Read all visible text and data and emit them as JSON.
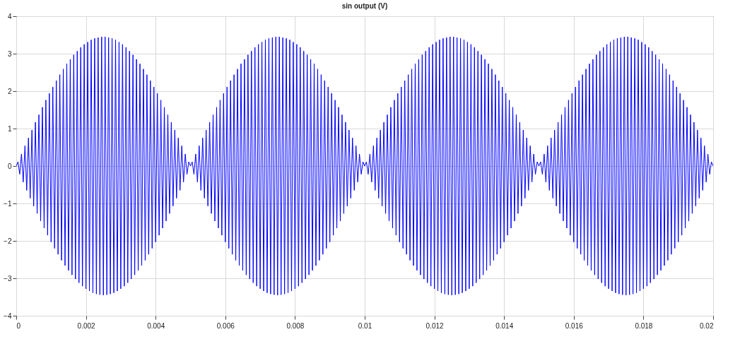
{
  "chart_data": {
    "type": "line",
    "title": "sin output (V)",
    "x": [
      0,
      5e-05,
      0.0001,
      0.00015,
      0.0002,
      0.00025,
      0.0003,
      0.00035,
      0.0004,
      0.00045,
      0.0005,
      0.00055,
      0.0006,
      0.00065,
      0.0007,
      0.00075,
      0.0008,
      0.00085,
      0.0009,
      0.00095,
      0.001,
      0.00105,
      0.0011,
      0.00115,
      0.0012,
      0.00125,
      0.0013,
      0.00135,
      0.0014,
      0.00145,
      0.0015,
      0.00155,
      0.0016,
      0.00165,
      0.0017,
      0.00175,
      0.0018,
      0.00185,
      0.0019,
      0.00195,
      0.002,
      0.00205,
      0.0021,
      0.00215,
      0.0022,
      0.00225,
      0.0023,
      0.00235,
      0.0024,
      0.00245,
      0.0025,
      0.00255,
      0.0026,
      0.00265,
      0.0027,
      0.00275,
      0.0028,
      0.00285,
      0.0029,
      0.00295,
      0.003,
      0.00305,
      0.0031,
      0.00315,
      0.0032,
      0.00325,
      0.0033,
      0.00335,
      0.0034,
      0.00345,
      0.0035,
      0.00355,
      0.0036,
      0.00365,
      0.0037,
      0.00375,
      0.0038,
      0.00385,
      0.0039,
      0.00395,
      0.004,
      0.00405,
      0.0041,
      0.00415,
      0.0042,
      0.00425,
      0.0043,
      0.00435,
      0.0044,
      0.00445,
      0.0045,
      0.00455,
      0.0046,
      0.00465,
      0.0047,
      0.00475,
      0.0048,
      0.00485,
      0.0049,
      0.00495,
      0.005,
      0.00505,
      0.0051,
      0.00515,
      0.0052,
      0.00525,
      0.0053,
      0.00535,
      0.0054,
      0.00545,
      0.0055,
      0.00555,
      0.0056,
      0.00565,
      0.0057,
      0.00575,
      0.0058,
      0.00585,
      0.0059,
      0.00595,
      0.006,
      0.00605,
      0.0061,
      0.00615,
      0.0062,
      0.00625,
      0.0063,
      0.00635,
      0.0064,
      0.00645,
      0.0065,
      0.00655,
      0.0066,
      0.00665,
      0.0067,
      0.00675,
      0.0068,
      0.00685,
      0.0069,
      0.00695,
      0.007,
      0.00705,
      0.0071,
      0.00715,
      0.0072,
      0.00725,
      0.0073,
      0.00735,
      0.0074,
      0.00745,
      0.0075,
      0.00755,
      0.0076,
      0.00765,
      0.0077,
      0.00775,
      0.0078,
      0.00785,
      0.0079,
      0.00795,
      0.008,
      0.00805,
      0.0081,
      0.00815,
      0.0082,
      0.00825,
      0.0083,
      0.00835,
      0.0084,
      0.00845,
      0.0085,
      0.00855,
      0.0086,
      0.00865,
      0.0087,
      0.00875,
      0.0088,
      0.00885,
      0.0089,
      0.00895,
      0.009,
      0.00905,
      0.0091,
      0.00915,
      0.0092,
      0.00925,
      0.0093,
      0.00935,
      0.0094,
      0.00945,
      0.0095,
      0.00955,
      0.0096,
      0.00965,
      0.0097,
      0.00975,
      0.0098,
      0.00985,
      0.0099,
      0.00995,
      0.01,
      0.01005,
      0.0101,
      0.01015,
      0.0102,
      0.01025,
      0.0103,
      0.01035,
      0.0104,
      0.01045,
      0.0105,
      0.01055,
      0.0106,
      0.01065,
      0.0107,
      0.01075,
      0.0108,
      0.01085,
      0.0109,
      0.01095,
      0.011,
      0.01105,
      0.0111,
      0.01115,
      0.0112,
      0.01125,
      0.0113,
      0.01135,
      0.0114,
      0.01145,
      0.0115,
      0.01155,
      0.0116,
      0.01165,
      0.0117,
      0.01175,
      0.0118,
      0.01185,
      0.0119,
      0.01195,
      0.012,
      0.01205,
      0.0121,
      0.01215,
      0.0122,
      0.01225,
      0.0123,
      0.01235,
      0.0124,
      0.01245,
      0.0125,
      0.01255,
      0.0126,
      0.01265,
      0.0127,
      0.01275,
      0.0128,
      0.01285,
      0.0129,
      0.01295,
      0.013,
      0.01305,
      0.0131,
      0.01315,
      0.0132,
      0.01325,
      0.0133,
      0.01335,
      0.0134,
      0.01345,
      0.0135,
      0.01355,
      0.0136,
      0.01365,
      0.0137,
      0.01375,
      0.0138,
      0.01385,
      0.0139,
      0.01395,
      0.014,
      0.01405,
      0.0141,
      0.01415,
      0.0142,
      0.01425,
      0.0143,
      0.01435,
      0.0144,
      0.01445,
      0.0145,
      0.01455,
      0.0146,
      0.01465,
      0.0147,
      0.01475,
      0.0148,
      0.01485,
      0.0149,
      0.01495,
      0.015,
      0.01505,
      0.0151,
      0.01515,
      0.0152,
      0.01525,
      0.0153,
      0.01535,
      0.0154,
      0.01545,
      0.0155,
      0.01555,
      0.0156,
      0.01565,
      0.0157,
      0.01575,
      0.0158,
      0.01585,
      0.0159,
      0.01595,
      0.016,
      0.01605,
      0.0161,
      0.01615,
      0.0162,
      0.01625,
      0.0163,
      0.01635,
      0.0164,
      0.01645,
      0.0165,
      0.01655,
      0.0166,
      0.01665,
      0.0167,
      0.01675,
      0.0168,
      0.01685,
      0.0169,
      0.01695,
      0.017,
      0.01705,
      0.0171,
      0.01715,
      0.0172,
      0.01725,
      0.0173,
      0.01735,
      0.0174,
      0.01745,
      0.0175,
      0.01755,
      0.0176,
      0.01765,
      0.0177,
      0.01775,
      0.0178,
      0.01785,
      0.0179,
      0.01795,
      0.018,
      0.01805,
      0.0181,
      0.01815,
      0.0182,
      0.01825,
      0.0183,
      0.01835,
      0.0184,
      0.01845,
      0.0185,
      0.01855,
      0.0186,
      0.01865,
      0.0187,
      0.01875,
      0.0188,
      0.01885,
      0.0189,
      0.01895,
      0.019,
      0.01905,
      0.0191,
      0.01915,
      0.0192,
      0.01925,
      0.0193,
      0.01935,
      0.0194,
      0.01945,
      0.0195,
      0.01955,
      0.0196,
      0.01965,
      0.0197,
      0.01975,
      0.0198,
      0.01985,
      0.0199,
      0.01995,
      0.02
    ],
    "series": [
      {
        "color": "#0000ff",
        "values": [
          0,
          0.11,
          -0.22,
          0.32,
          -0.43,
          0.54,
          -0.65,
          0.75,
          -0.86,
          0.96,
          -1.07,
          1.17,
          -1.27,
          1.37,
          -1.47,
          1.57,
          -1.66,
          1.76,
          -1.85,
          1.94,
          -2.03,
          2.11,
          -2.2,
          2.28,
          -2.36,
          2.44,
          -2.52,
          2.59,
          -2.66,
          2.73,
          -2.79,
          2.85,
          -2.91,
          2.97,
          -3.02,
          3.07,
          -3.12,
          3.17,
          -3.21,
          3.25,
          -3.28,
          3.31,
          -3.34,
          3.37,
          -3.39,
          3.41,
          -3.42,
          3.43,
          -3.44,
          3.45,
          -3.45,
          3.45,
          -3.44,
          3.43,
          -3.42,
          3.41,
          -3.39,
          3.37,
          -3.34,
          3.31,
          -3.28,
          3.25,
          -3.21,
          3.17,
          -3.12,
          3.07,
          -3.02,
          2.97,
          -2.91,
          2.85,
          -2.79,
          2.73,
          -2.66,
          2.59,
          -2.52,
          2.44,
          -2.36,
          2.28,
          -2.2,
          2.11,
          -2.03,
          1.94,
          -1.85,
          1.76,
          -1.66,
          1.57,
          -1.47,
          1.37,
          -1.27,
          1.17,
          -1.07,
          0.96,
          -0.86,
          0.75,
          -0.65,
          0.54,
          -0.43,
          0.32,
          -0.22,
          0.11,
          0,
          0.11,
          -0.22,
          0.32,
          -0.43,
          0.54,
          -0.65,
          0.75,
          -0.86,
          0.96,
          -1.07,
          1.17,
          -1.27,
          1.37,
          -1.47,
          1.57,
          -1.66,
          1.76,
          -1.85,
          1.94,
          -2.03,
          2.11,
          -2.2,
          2.28,
          -2.36,
          2.44,
          -2.52,
          2.59,
          -2.66,
          2.73,
          -2.79,
          2.85,
          -2.91,
          2.97,
          -3.02,
          3.07,
          -3.12,
          3.17,
          -3.21,
          3.25,
          -3.28,
          3.31,
          -3.34,
          3.37,
          -3.39,
          3.41,
          -3.42,
          3.43,
          -3.44,
          3.45,
          -3.45,
          3.45,
          -3.44,
          3.43,
          -3.42,
          3.41,
          -3.39,
          3.37,
          -3.34,
          3.31,
          -3.28,
          3.25,
          -3.21,
          3.17,
          -3.12,
          3.07,
          -3.02,
          2.97,
          -2.91,
          2.85,
          -2.79,
          2.73,
          -2.66,
          2.59,
          -2.52,
          2.44,
          -2.36,
          2.28,
          -2.2,
          2.11,
          -2.03,
          1.94,
          -1.85,
          1.76,
          -1.66,
          1.57,
          -1.47,
          1.37,
          -1.27,
          1.17,
          -1.07,
          0.96,
          -0.86,
          0.75,
          -0.65,
          0.54,
          -0.43,
          0.32,
          -0.22,
          0.11,
          0,
          0.11,
          -0.22,
          0.32,
          -0.43,
          0.54,
          -0.65,
          0.75,
          -0.86,
          0.96,
          -1.07,
          1.17,
          -1.27,
          1.37,
          -1.47,
          1.57,
          -1.66,
          1.76,
          -1.85,
          1.94,
          -2.03,
          2.11,
          -2.2,
          2.28,
          -2.36,
          2.44,
          -2.52,
          2.59,
          -2.66,
          2.73,
          -2.79,
          2.85,
          -2.91,
          2.97,
          -3.02,
          3.07,
          -3.12,
          3.17,
          -3.21,
          3.25,
          -3.28,
          3.31,
          -3.34,
          3.37,
          -3.39,
          3.41,
          -3.42,
          3.43,
          -3.44,
          3.45,
          -3.45,
          3.45,
          -3.44,
          3.43,
          -3.42,
          3.41,
          -3.39,
          3.37,
          -3.34,
          3.31,
          -3.28,
          3.25,
          -3.21,
          3.17,
          -3.12,
          3.07,
          -3.02,
          2.97,
          -2.91,
          2.85,
          -2.79,
          2.73,
          -2.66,
          2.59,
          -2.52,
          2.44,
          -2.36,
          2.28,
          -2.2,
          2.11,
          -2.03,
          1.94,
          -1.85,
          1.76,
          -1.66,
          1.57,
          -1.47,
          1.37,
          -1.27,
          1.17,
          -1.07,
          0.96,
          -0.86,
          0.75,
          -0.65,
          0.54,
          -0.43,
          0.32,
          -0.22,
          0.11,
          0,
          0.11,
          -0.22,
          0.32,
          -0.43,
          0.54,
          -0.65,
          0.75,
          -0.86,
          0.96,
          -1.07,
          1.17,
          -1.27,
          1.37,
          -1.47,
          1.57,
          -1.66,
          1.76,
          -1.85,
          1.94,
          -2.03,
          2.11,
          -2.2,
          2.28,
          -2.36,
          2.44,
          -2.52,
          2.59,
          -2.66,
          2.73,
          -2.79,
          2.85,
          -2.91,
          2.97,
          -3.02,
          3.07,
          -3.12,
          3.17,
          -3.21,
          3.25,
          -3.28,
          3.31,
          -3.34,
          3.37,
          -3.39,
          3.41,
          -3.42,
          3.43,
          -3.44,
          3.45,
          -3.45,
          3.45,
          -3.44,
          3.43,
          -3.42,
          3.41,
          -3.39,
          3.37,
          -3.34,
          3.31,
          -3.28,
          3.25,
          -3.21,
          3.17,
          -3.12,
          3.07,
          -3.02,
          2.97,
          -2.91,
          2.85,
          -2.79,
          2.73,
          -2.66,
          2.59,
          -2.52,
          2.44,
          -2.36,
          2.28,
          -2.2,
          2.11,
          -2.03,
          1.94,
          -1.85,
          1.76,
          -1.66,
          1.57,
          -1.47,
          1.37,
          -1.27,
          1.17,
          -1.07,
          0.96,
          -0.86,
          0.75,
          -0.65,
          0.54,
          -0.43,
          0.32,
          -0.22,
          0.11,
          0
        ]
      }
    ],
    "xlim": [
      0,
      0.02
    ],
    "ylim": [
      -4,
      4
    ],
    "xticks": [
      0,
      0.002,
      0.004,
      0.006,
      0.008,
      0.01,
      0.012,
      0.014,
      0.016,
      0.018,
      0.02
    ],
    "yticks": [
      -4,
      -3,
      -2,
      -1,
      0,
      1,
      2,
      3,
      4
    ],
    "grid": true
  }
}
